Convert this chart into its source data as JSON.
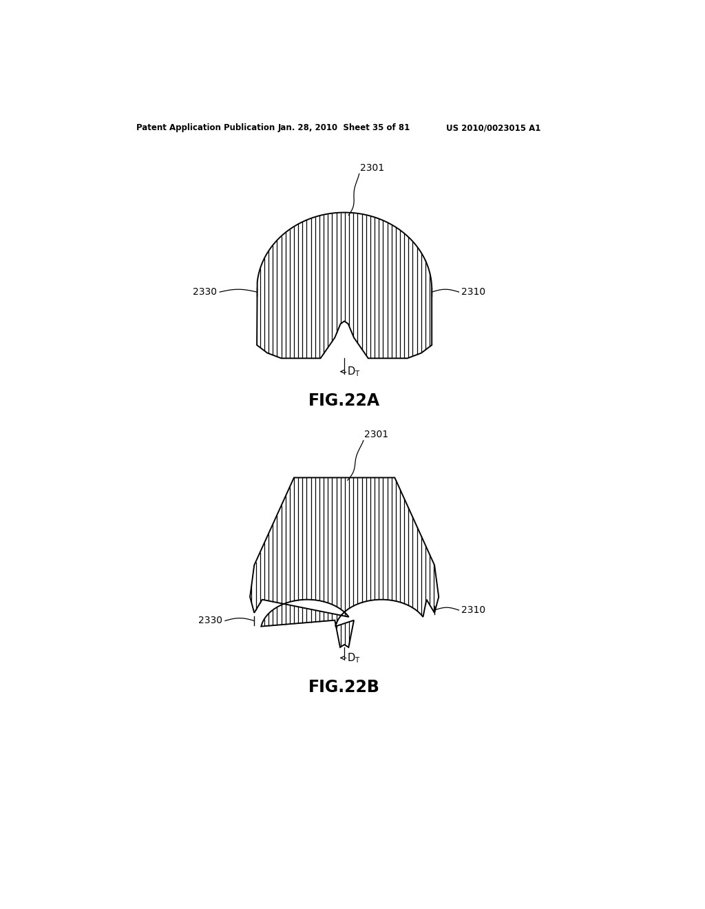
{
  "bg_color": "#ffffff",
  "line_color": "#000000",
  "header_text": "Patent Application Publication",
  "header_date": "Jan. 28, 2010  Sheet 35 of 81",
  "header_patent": "US 2010/0023015 A1",
  "fig_label_A": "FIG.22A",
  "fig_label_B": "FIG.22B",
  "label_2301": "2301",
  "label_2310": "2310",
  "label_2330": "2330"
}
